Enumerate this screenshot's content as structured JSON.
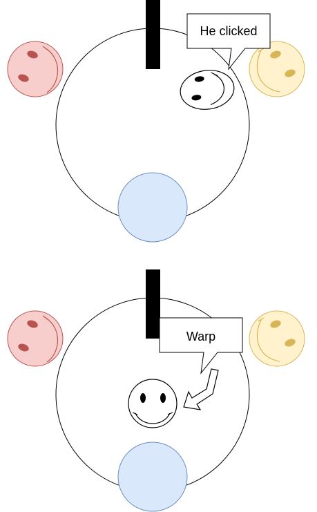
{
  "panels": [
    {
      "callout_text": "He clicked"
    },
    {
      "callout_text": "Warp"
    }
  ],
  "colors": {
    "red_face_fill": "#f8cecc",
    "red_face_stroke": "#b85450",
    "yellow_face_fill": "#fff2cc",
    "yellow_face_stroke": "#d6b656",
    "blue_circle_fill": "#dae8fc",
    "blue_circle_stroke": "#6c8ebf",
    "bar": "#000000"
  },
  "icons": {
    "smiley": "smiley-face-icon",
    "arrow": "bent-arrow-icon"
  }
}
